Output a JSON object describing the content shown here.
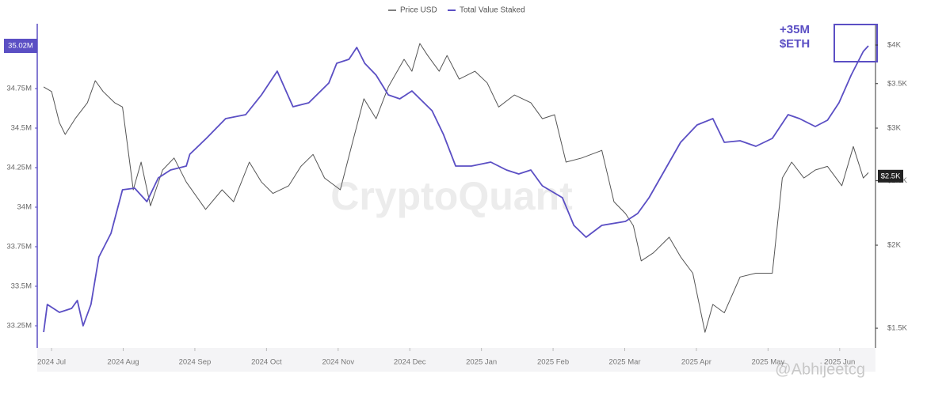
{
  "chart_data": {
    "type": "line",
    "series": [
      {
        "name": "Price USD",
        "color": "#555555",
        "axis": "y2",
        "x": [
          -0.11,
          0,
          0.11,
          0.19,
          0.33,
          0.5,
          0.61,
          0.72,
          0.88,
          0.99,
          1.14,
          1.25,
          1.38,
          1.55,
          1.71,
          1.88,
          2.15,
          2.38,
          2.54,
          2.76,
          2.93,
          3.09,
          3.31,
          3.48,
          3.65,
          3.81,
          4.03,
          4.2,
          4.36,
          4.53,
          4.7,
          4.92,
          5.03,
          5.14,
          5.25,
          5.41,
          5.52,
          5.69,
          5.91,
          6.08,
          6.24,
          6.46,
          6.69,
          6.85,
          7.02,
          7.18,
          7.4,
          7.68,
          7.85,
          8.01,
          8.12,
          8.23,
          8.4,
          8.62,
          8.78,
          8.95,
          9.12,
          9.23,
          9.39,
          9.61,
          9.83,
          10.06,
          10.2,
          10.33,
          10.5,
          10.66,
          10.83,
          11.03,
          11.19,
          11.33,
          11.4
        ],
        "values": [
          3460,
          3405,
          3057,
          2935,
          3100,
          3276,
          3536,
          3405,
          3276,
          3228,
          2423,
          2667,
          2292,
          2595,
          2705,
          2489,
          2264,
          2423,
          2325,
          2667,
          2489,
          2393,
          2457,
          2628,
          2739,
          2524,
          2423,
          2855,
          3321,
          3100,
          3460,
          3808,
          3653,
          4022,
          3858,
          3653,
          3858,
          3555,
          3653,
          3509,
          3228,
          3365,
          3276,
          3100,
          3142,
          2667,
          2705,
          2777,
          2325,
          2232,
          2139,
          1894,
          1948,
          2056,
          1921,
          1815,
          1479,
          1629,
          1582,
          1791,
          1815,
          1815,
          2524,
          2667,
          2524,
          2595,
          2628,
          2457,
          2815,
          2524,
          2571
        ]
      },
      {
        "name": "Total Value Staked",
        "color": "#5b4fc4",
        "axis": "y",
        "x": [
          -0.11,
          -0.06,
          0.11,
          0.28,
          0.36,
          0.44,
          0.55,
          0.66,
          0.83,
          0.99,
          1.16,
          1.33,
          1.49,
          1.66,
          1.88,
          1.93,
          2.16,
          2.43,
          2.71,
          2.93,
          3.15,
          3.37,
          3.59,
          3.87,
          3.98,
          4.15,
          4.26,
          4.37,
          4.53,
          4.7,
          4.86,
          5.03,
          5.31,
          5.47,
          5.64,
          5.86,
          6.13,
          6.35,
          6.52,
          6.69,
          6.85,
          7.13,
          7.29,
          7.46,
          7.68,
          8.01,
          8.18,
          8.34,
          8.56,
          8.78,
          9.01,
          9.23,
          9.39,
          9.61,
          9.83,
          10.06,
          10.28,
          10.44,
          10.66,
          10.83,
          10.99,
          11.16,
          11.33,
          11.4
        ],
        "values": [
          33.21,
          33.385,
          33.335,
          33.36,
          33.41,
          33.25,
          33.385,
          33.685,
          33.835,
          34.11,
          34.12,
          34.035,
          34.185,
          34.235,
          34.26,
          34.335,
          34.435,
          34.56,
          34.585,
          34.71,
          34.86,
          34.635,
          34.66,
          34.785,
          34.91,
          34.935,
          35.01,
          34.91,
          34.835,
          34.71,
          34.685,
          34.735,
          34.61,
          34.46,
          34.26,
          34.26,
          34.285,
          34.235,
          34.21,
          34.235,
          34.135,
          34.06,
          33.885,
          33.81,
          33.885,
          33.91,
          33.96,
          34.06,
          34.235,
          34.41,
          34.52,
          34.56,
          34.41,
          34.42,
          34.385,
          34.435,
          34.585,
          34.56,
          34.51,
          34.55,
          34.66,
          34.835,
          34.985,
          35.02
        ]
      }
    ],
    "xlim": [
      -0.2,
      11.5
    ],
    "xticks": [
      {
        "value": 0,
        "label": "2024 Jul"
      },
      {
        "value": 1,
        "label": "2024 Aug"
      },
      {
        "value": 2,
        "label": "2024 Sep"
      },
      {
        "value": 3,
        "label": "2024 Oct"
      },
      {
        "value": 4,
        "label": "2024 Nov"
      },
      {
        "value": 5,
        "label": "2024 Dec"
      },
      {
        "value": 6,
        "label": "2025 Jan"
      },
      {
        "value": 7,
        "label": "2025 Feb"
      },
      {
        "value": 8,
        "label": "2025 Mar"
      },
      {
        "value": 9,
        "label": "2025 Apr"
      },
      {
        "value": 10,
        "label": "2025 May"
      },
      {
        "value": 11,
        "label": "2025 Jun"
      }
    ],
    "ylim": [
      33.11,
      35.16
    ],
    "yticks": [
      {
        "value": 33.25,
        "label": "33.25M"
      },
      {
        "value": 33.5,
        "label": "33.5M"
      },
      {
        "value": 33.75,
        "label": "33.75M"
      },
      {
        "value": 34,
        "label": "34M"
      },
      {
        "value": 34.25,
        "label": "34.25M"
      },
      {
        "value": 34.5,
        "label": "34.5M"
      },
      {
        "value": 34.75,
        "label": "34.75M"
      }
    ],
    "y2lim": [
      1401,
      4307
    ],
    "y2log": true,
    "y2ticks": [
      {
        "value": 1500,
        "label": "$1.5K"
      },
      {
        "value": 2000,
        "label": "$2K"
      },
      {
        "value": 2500,
        "label": "$2.5K"
      },
      {
        "value": 3000,
        "label": "$3K"
      },
      {
        "value": 3500,
        "label": "$3.5K"
      },
      {
        "value": 4000,
        "label": "$4K"
      }
    ],
    "y_current": {
      "value": 35.02,
      "label": "35.02M"
    },
    "y2_current": {
      "value": 2540,
      "label": "$2.5K"
    },
    "annotation": [
      "+35M",
      "$ETH"
    ],
    "watermarks": [
      "CryptoQuant",
      "@Abhijeetcg"
    ],
    "legend": "top"
  }
}
